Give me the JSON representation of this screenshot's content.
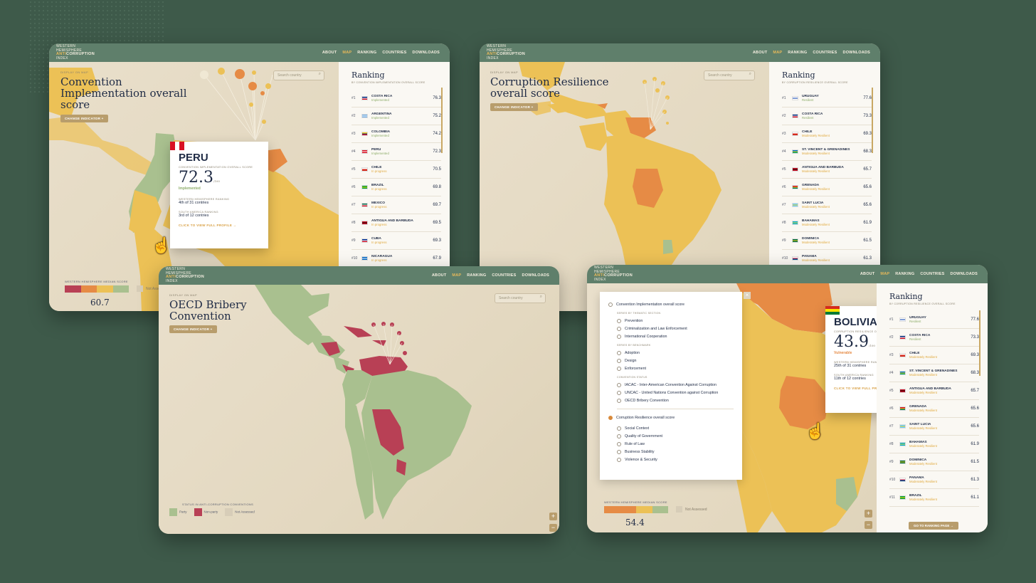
{
  "nav": [
    "ABOUT",
    "MAP",
    "RANKING",
    "COUNTRIES",
    "DOWNLOADS"
  ],
  "logo": {
    "l1": "WESTERN",
    "l2": "HEMISPHERE",
    "anti": "ANTI",
    "corruption": "CORRUPTION",
    "index": "INDEX"
  },
  "display_on_map": "DISPLAY ON MAP",
  "change_indicator": "CHANGE INDICATOR +",
  "search_placeholder": "Search country",
  "search_icon": "magnifier-icon",
  "median_label": "WESTERN HEMISPHERE MEDIAN SCORE",
  "not_assessed": "Not Assessed",
  "scale": {
    "min": "0",
    "max": "100"
  },
  "colors": {
    "green": "#a9c08f",
    "yellow": "#ecc156",
    "orange": "#e68b45",
    "red": "#b84055",
    "header": "#5f7f6b",
    "accent": "#e8b95a"
  },
  "card1": {
    "title": "Convention Implementation overall score",
    "ranking_title": "Ranking",
    "ranking_sub": "BY CONVENTION IMPLEMENTATION OVERALL SCORE",
    "rows": [
      {
        "rank": "#1",
        "name": "COSTA RICA",
        "status": "Implemented",
        "score": "76.3"
      },
      {
        "rank": "#2",
        "name": "ARGENTINA",
        "status": "Implemented",
        "score": "75.2"
      },
      {
        "rank": "#3",
        "name": "COLOMBIA",
        "status": "Implemented",
        "score": "74.2"
      },
      {
        "rank": "#4",
        "name": "PERU",
        "status": "Implemented",
        "score": "72.3"
      },
      {
        "rank": "#5",
        "name": "CHILE",
        "status": "In progress",
        "score": "70.5"
      },
      {
        "rank": "#6",
        "name": "BRAZIL",
        "status": "In progress",
        "score": "69.8"
      },
      {
        "rank": "#7",
        "name": "MEXICO",
        "status": "In progress",
        "score": "69.7"
      },
      {
        "rank": "#8",
        "name": "ANTIGUA AND BARBUDA",
        "status": "In progress",
        "score": "69.5"
      },
      {
        "rank": "#9",
        "name": "CUBA",
        "status": "In progress",
        "score": "69.3"
      },
      {
        "rank": "#10",
        "name": "NICARAGUA",
        "status": "In progress",
        "score": "67.9"
      }
    ],
    "popup": {
      "country": "PERU",
      "label": "CONVENTION IMPLEMENTATION OVERALL SCORE",
      "score": "72.3",
      "out_of": "/100",
      "status": "Implemented",
      "wh_label": "WESTERN HEMISPHERE RANKING",
      "wh_rank": "4th of 31 contries",
      "sa_label": "SOUTH AMERICA RANKING",
      "sa_rank": "3rd of 12 contries",
      "link": "CLICK TO VIEW FULL PROFILE →"
    },
    "median": "60.7"
  },
  "card2": {
    "title": "Corruption Resilience overall score",
    "ranking_title": "Ranking",
    "ranking_sub": "BY CORRUPTION RESILIENCE OVERALL SCORE",
    "rows": [
      {
        "rank": "#1",
        "name": "URUGUAY",
        "status": "Resilient",
        "score": "77.6"
      },
      {
        "rank": "#2",
        "name": "COSTA RICA",
        "status": "Resilient",
        "score": "73.3"
      },
      {
        "rank": "#3",
        "name": "CHILE",
        "status": "Moderately Resilient",
        "score": "69.3"
      },
      {
        "rank": "#4",
        "name": "ST. VINCENT & GRENADINES",
        "status": "Moderately Resilient",
        "score": "68.3"
      },
      {
        "rank": "#5",
        "name": "ANTIGUA AND BARBUDA",
        "status": "Moderately Resilient",
        "score": "65.7"
      },
      {
        "rank": "#6",
        "name": "GRENADA",
        "status": "Moderately Resilient",
        "score": "65.6"
      },
      {
        "rank": "#7",
        "name": "SAINT LUCIA",
        "status": "Moderately Resilient",
        "score": "65.6"
      },
      {
        "rank": "#8",
        "name": "BAHAMAS",
        "status": "Moderately Resilient",
        "score": "61.9"
      },
      {
        "rank": "#9",
        "name": "DOMINICA",
        "status": "Moderately Resilient",
        "score": "61.5"
      },
      {
        "rank": "#10",
        "name": "PANAMA",
        "status": "Moderately Resilient",
        "score": "61.3"
      }
    ]
  },
  "card3": {
    "title": "OECD Bribery Convention",
    "legend_title": "STATUS IN ANTI-CORRUPTION CONVENTIONS",
    "legend": [
      "Party",
      "Non-party",
      "Not Assessed"
    ]
  },
  "card4": {
    "options": {
      "main1": "Convention Implementation overall score",
      "g1": "SERIES BY THEMATIC SECTION",
      "g1_items": [
        "Prevention",
        "Criminalization and Law Enforcement",
        "International Cooperation"
      ],
      "g2": "SERIES BY BENCHMARK",
      "g2_items": [
        "Adoption",
        "Design",
        "Enforcement"
      ],
      "g3": "CONVENTION STATUS",
      "g3_items": [
        "IACAC - Inter-American Convention Against Corruption",
        "UNCAC - United Nations Convention against Corruption",
        "OECD Bribery Convention"
      ],
      "main2": "Corruption Resilience overall score",
      "m2_items": [
        "Social Context",
        "Quality of Government",
        "Rule of Law",
        "Business Stability",
        "Violence & Security"
      ]
    },
    "close_icon": "close-icon",
    "popup": {
      "country": "BOLIVIA",
      "label": "CORRUPTION RESILIENCE OVERALL SCORE",
      "score": "43.9",
      "out_of": "/100",
      "status": "Vulnerable",
      "wh_label": "WESTERN HEMISPHERE RANKING",
      "wh_rank": "25th of 31 contries",
      "sa_label": "SOUTH AMERICA RANKING",
      "sa_rank": "11th of 12 contries",
      "link": "CLICK TO VIEW FULL PROFILE →"
    },
    "ranking_title": "Ranking",
    "ranking_sub": "BY CORRUPTION RESILIENCE OVERALL SCORE",
    "rows": [
      {
        "rank": "#1",
        "name": "URUGUAY",
        "status": "Resilient",
        "score": "77.6"
      },
      {
        "rank": "#2",
        "name": "COSTA RICA",
        "status": "Resilient",
        "score": "73.3"
      },
      {
        "rank": "#3",
        "name": "CHILE",
        "status": "Moderately Resilient",
        "score": "69.3"
      },
      {
        "rank": "#4",
        "name": "ST. VINCENT & GRENADINES",
        "status": "Moderately Resilient",
        "score": "68.3"
      },
      {
        "rank": "#5",
        "name": "ANTIGUA AND BARBUDA",
        "status": "Moderately Resilient",
        "score": "65.7"
      },
      {
        "rank": "#6",
        "name": "GRENADA",
        "status": "Moderately Resilient",
        "score": "65.6"
      },
      {
        "rank": "#7",
        "name": "SAINT LUCIA",
        "status": "Moderately Resilient",
        "score": "65.6"
      },
      {
        "rank": "#8",
        "name": "BAHAMAS",
        "status": "Moderately Resilient",
        "score": "61.9"
      },
      {
        "rank": "#9",
        "name": "DOMINICA",
        "status": "Moderately Resilient",
        "score": "61.5"
      },
      {
        "rank": "#10",
        "name": "PANAMA",
        "status": "Moderately Resilient",
        "score": "61.3"
      },
      {
        "rank": "#11",
        "name": "BRAZIL",
        "status": "Moderately Resilient",
        "score": "61.1"
      }
    ],
    "ranking_button": "GO TO RANKING PAGE →",
    "median": "54.4",
    "zoom_in": "+",
    "zoom_out": "−"
  }
}
